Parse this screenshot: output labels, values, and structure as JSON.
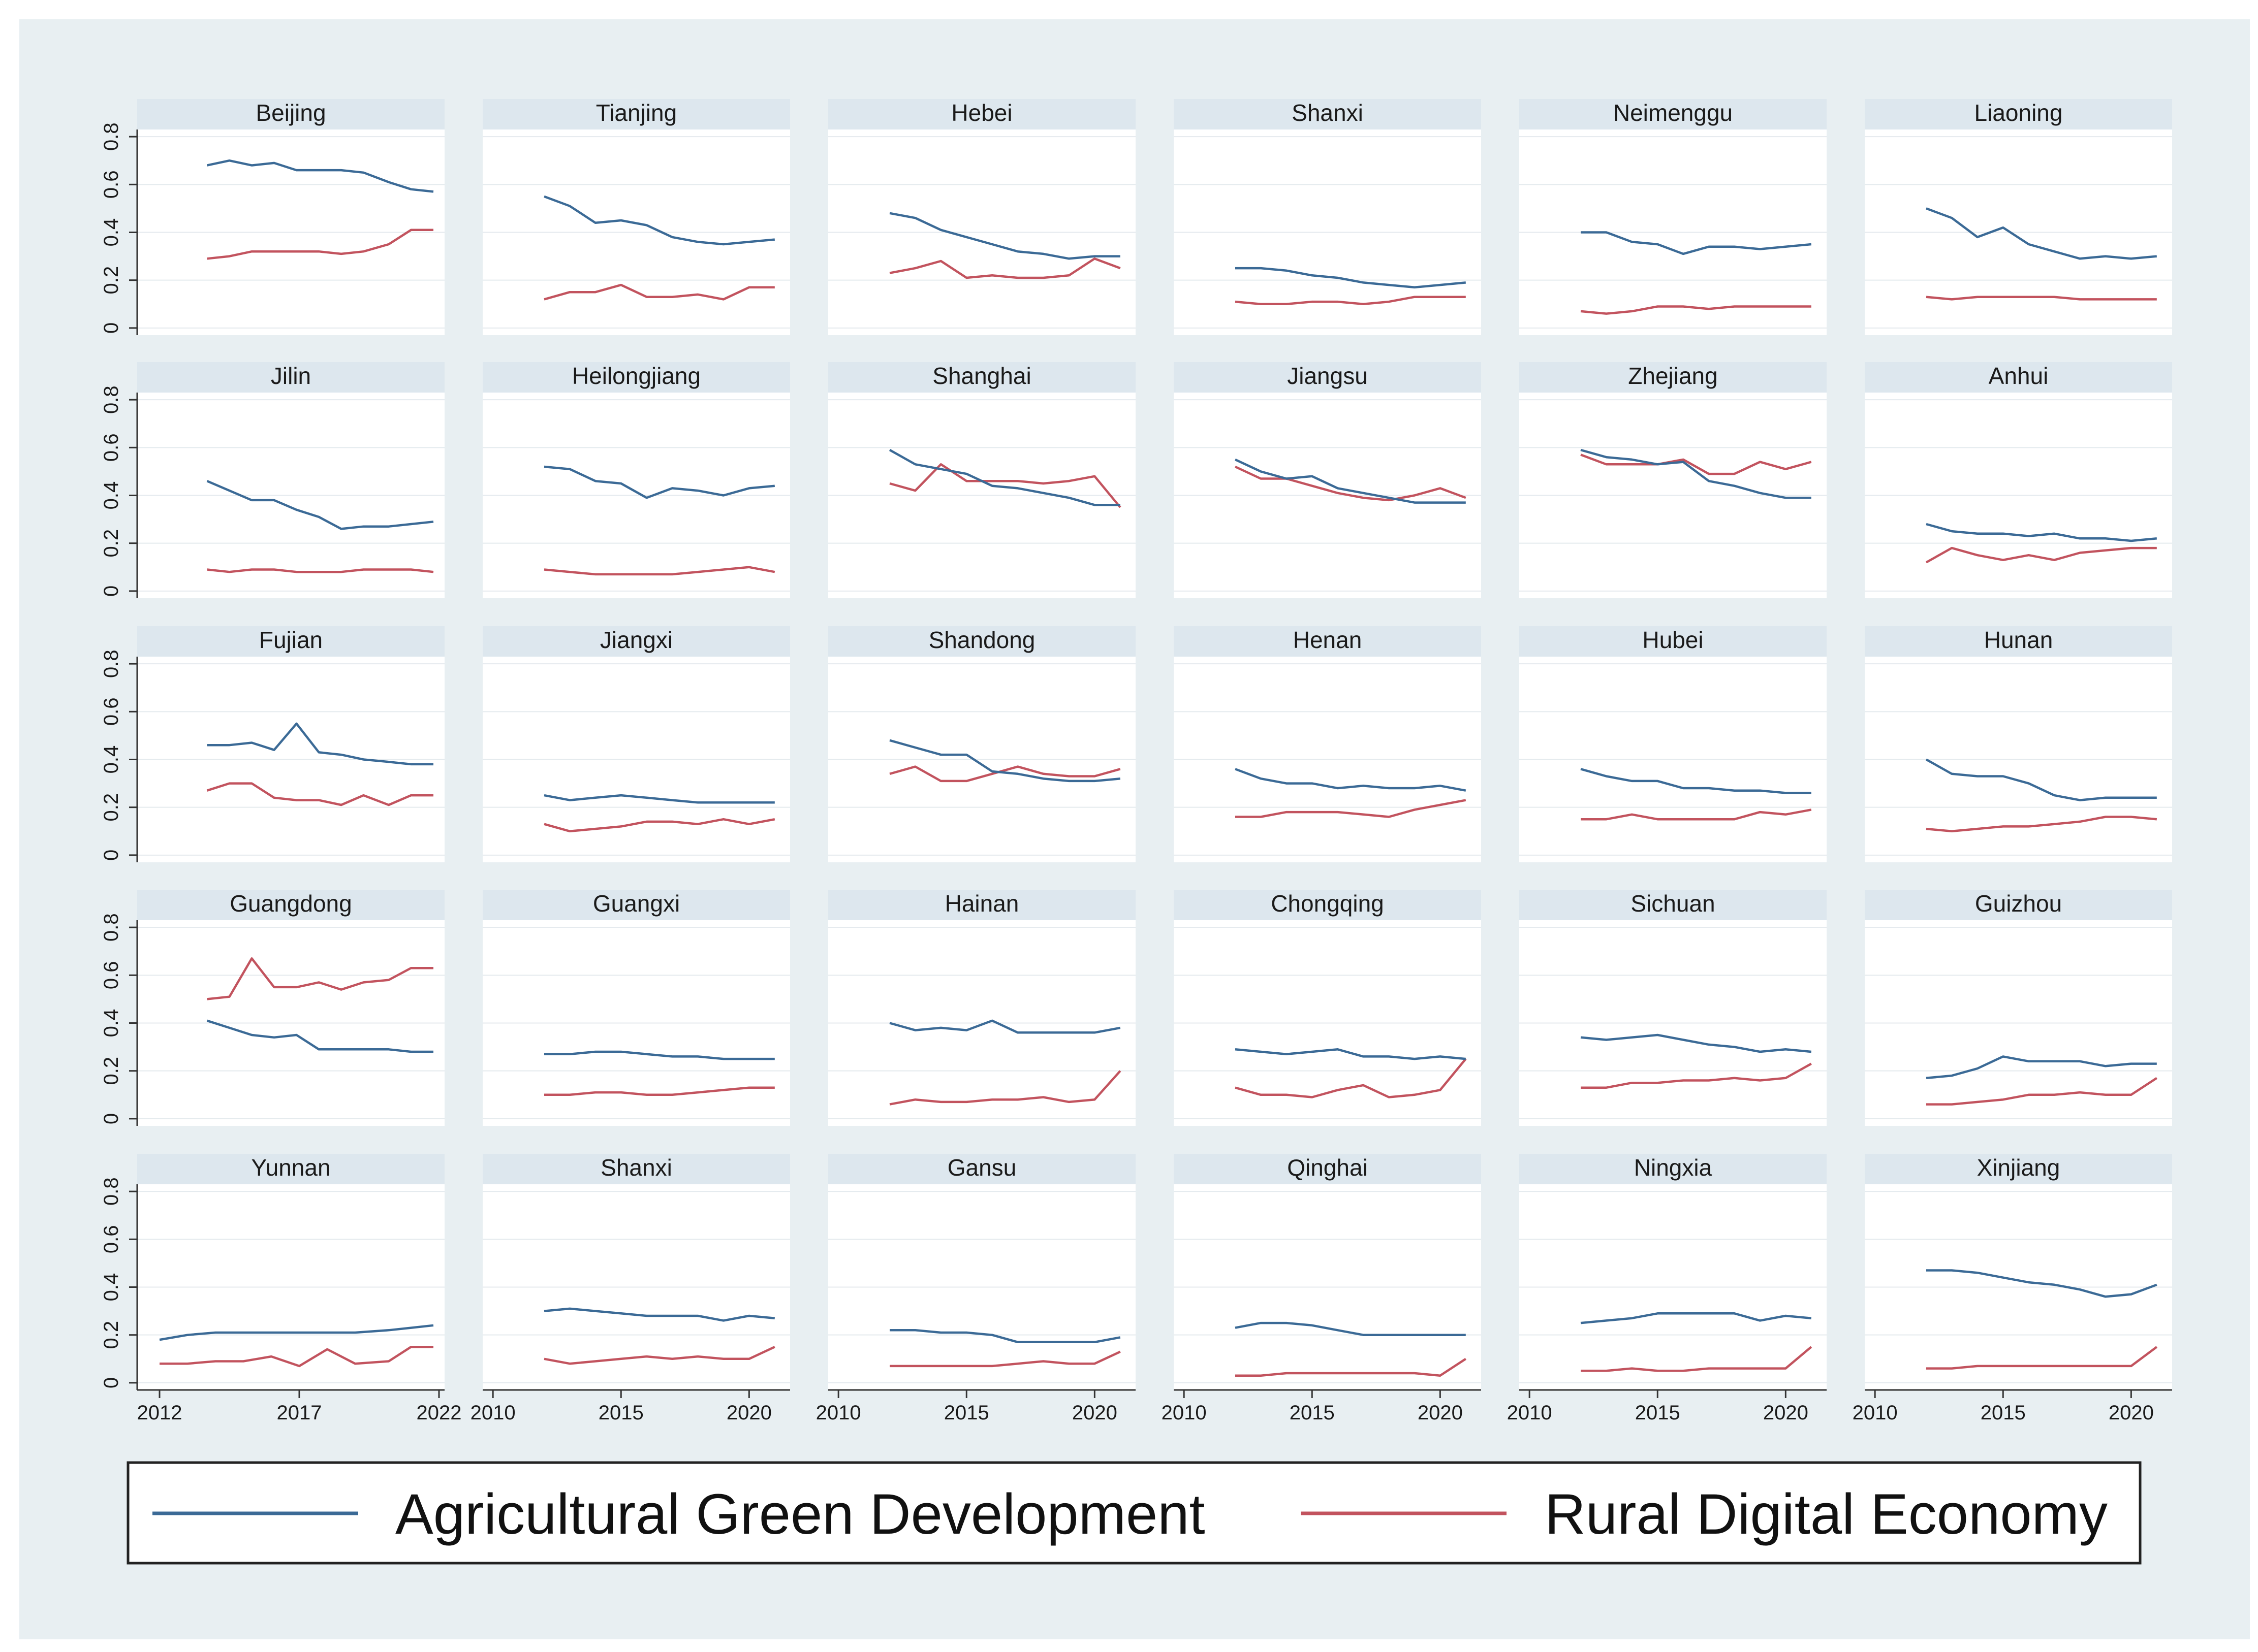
{
  "colors": {
    "agri": "#3b6a96",
    "rural": "#c2535e",
    "outer_bg": "#e8eff2",
    "strip_bg": "#dde7ee",
    "grid": "#e4eaee",
    "axis": "#333333"
  },
  "chart_data": {
    "type": "line",
    "layout": "small-multiples 5x6",
    "y_ticks": [
      0,
      0.2,
      0.4,
      0.6,
      0.8
    ],
    "y_tick_labels": [
      "0",
      "0.2",
      "0.4",
      "0.6",
      "0.8"
    ],
    "ylim": [
      -0.03,
      0.83
    ],
    "x_tick_sets": [
      {
        "ticks": [
          2012,
          2017,
          2022
        ],
        "labels": [
          "2012",
          "2017",
          "2022"
        ],
        "xlim": [
          2011.2,
          2022.2
        ]
      },
      {
        "ticks": [
          2010,
          2015,
          2020
        ],
        "labels": [
          "2010",
          "2015",
          "2020"
        ],
        "xlim": [
          2009.6,
          2021.6
        ]
      }
    ],
    "legend": {
      "position": "bottom",
      "entries": [
        "Agricultural Green Development",
        "Rural Digital Economy"
      ]
    },
    "panels": [
      {
        "name": "Beijing",
        "x": [
          2013.7,
          2014.5,
          2015.3,
          2016.1,
          2016.9,
          2017.7,
          2018.5,
          2019.3,
          2020.2,
          2021.0,
          2021.8
        ],
        "agri": [
          0.68,
          0.7,
          0.68,
          0.69,
          0.66,
          0.66,
          0.66,
          0.65,
          0.61,
          0.58,
          0.57
        ],
        "rural": [
          0.29,
          0.3,
          0.32,
          0.32,
          0.32,
          0.32,
          0.31,
          0.32,
          0.35,
          0.41,
          0.41
        ]
      },
      {
        "name": "Tianjing",
        "x": [
          2012,
          2013,
          2014,
          2015,
          2016,
          2017,
          2018,
          2019,
          2020,
          2021
        ],
        "agri": [
          0.55,
          0.51,
          0.44,
          0.45,
          0.43,
          0.38,
          0.36,
          0.35,
          0.36,
          0.37
        ],
        "rural": [
          0.12,
          0.15,
          0.15,
          0.18,
          0.13,
          0.13,
          0.14,
          0.12,
          0.17,
          0.17
        ]
      },
      {
        "name": "Hebei",
        "x": [
          2012,
          2013,
          2014,
          2015,
          2016,
          2017,
          2018,
          2019,
          2020,
          2021
        ],
        "agri": [
          0.48,
          0.46,
          0.41,
          0.38,
          0.35,
          0.32,
          0.31,
          0.29,
          0.3,
          0.3
        ],
        "rural": [
          0.23,
          0.25,
          0.28,
          0.21,
          0.22,
          0.21,
          0.21,
          0.22,
          0.29,
          0.25
        ]
      },
      {
        "name": "Shanxi",
        "x": [
          2012,
          2013,
          2014,
          2015,
          2016,
          2017,
          2018,
          2019,
          2020,
          2021
        ],
        "agri": [
          0.25,
          0.25,
          0.24,
          0.22,
          0.21,
          0.19,
          0.18,
          0.17,
          0.18,
          0.19
        ],
        "rural": [
          0.11,
          0.1,
          0.1,
          0.11,
          0.11,
          0.1,
          0.11,
          0.13,
          0.13,
          0.13
        ]
      },
      {
        "name": "Neimenggu",
        "x": [
          2012,
          2013,
          2014,
          2015,
          2016,
          2017,
          2018,
          2019,
          2020,
          2021
        ],
        "agri": [
          0.4,
          0.4,
          0.36,
          0.35,
          0.31,
          0.34,
          0.34,
          0.33,
          0.34,
          0.35
        ],
        "rural": [
          0.07,
          0.06,
          0.07,
          0.09,
          0.09,
          0.08,
          0.09,
          0.09,
          0.09,
          0.09
        ]
      },
      {
        "name": "Liaoning",
        "x": [
          2012,
          2013,
          2014,
          2015,
          2016,
          2017,
          2018,
          2019,
          2020,
          2021
        ],
        "agri": [
          0.5,
          0.46,
          0.38,
          0.42,
          0.35,
          0.32,
          0.29,
          0.3,
          0.29,
          0.3
        ],
        "rural": [
          0.13,
          0.12,
          0.13,
          0.13,
          0.13,
          0.13,
          0.12,
          0.12,
          0.12,
          0.12
        ]
      },
      {
        "name": "Jilin",
        "x": [
          2013.7,
          2014.5,
          2015.3,
          2016.1,
          2016.9,
          2017.7,
          2018.5,
          2019.3,
          2020.2,
          2021.0,
          2021.8
        ],
        "agri": [
          0.46,
          0.42,
          0.38,
          0.38,
          0.34,
          0.31,
          0.26,
          0.27,
          0.27,
          0.28,
          0.29
        ],
        "rural": [
          0.09,
          0.08,
          0.09,
          0.09,
          0.08,
          0.08,
          0.08,
          0.09,
          0.09,
          0.09,
          0.08
        ]
      },
      {
        "name": "Heilongjiang",
        "x": [
          2012,
          2013,
          2014,
          2015,
          2016,
          2017,
          2018,
          2019,
          2020,
          2021
        ],
        "agri": [
          0.52,
          0.51,
          0.46,
          0.45,
          0.39,
          0.43,
          0.42,
          0.4,
          0.43,
          0.44
        ],
        "rural": [
          0.09,
          0.08,
          0.07,
          0.07,
          0.07,
          0.07,
          0.08,
          0.09,
          0.1,
          0.08
        ]
      },
      {
        "name": "Shanghai",
        "x": [
          2012,
          2013,
          2014,
          2015,
          2016,
          2017,
          2018,
          2019,
          2020,
          2021
        ],
        "agri": [
          0.59,
          0.53,
          0.51,
          0.49,
          0.44,
          0.43,
          0.41,
          0.39,
          0.36,
          0.36
        ],
        "rural": [
          0.45,
          0.42,
          0.53,
          0.46,
          0.46,
          0.46,
          0.45,
          0.46,
          0.48,
          0.35
        ]
      },
      {
        "name": "Jiangsu",
        "x": [
          2012,
          2013,
          2014,
          2015,
          2016,
          2017,
          2018,
          2019,
          2020,
          2021
        ],
        "agri": [
          0.55,
          0.5,
          0.47,
          0.48,
          0.43,
          0.41,
          0.39,
          0.37,
          0.37,
          0.37
        ],
        "rural": [
          0.52,
          0.47,
          0.47,
          0.44,
          0.41,
          0.39,
          0.38,
          0.4,
          0.43,
          0.39
        ]
      },
      {
        "name": "Zhejiang",
        "x": [
          2012,
          2013,
          2014,
          2015,
          2016,
          2017,
          2018,
          2019,
          2020,
          2021
        ],
        "agri": [
          0.59,
          0.56,
          0.55,
          0.53,
          0.54,
          0.46,
          0.44,
          0.41,
          0.39,
          0.39
        ],
        "rural": [
          0.57,
          0.53,
          0.53,
          0.53,
          0.55,
          0.49,
          0.49,
          0.54,
          0.51,
          0.54
        ]
      },
      {
        "name": "Anhui",
        "x": [
          2012,
          2013,
          2014,
          2015,
          2016,
          2017,
          2018,
          2019,
          2020,
          2021
        ],
        "agri": [
          0.28,
          0.25,
          0.24,
          0.24,
          0.23,
          0.24,
          0.22,
          0.22,
          0.21,
          0.22
        ],
        "rural": [
          0.12,
          0.18,
          0.15,
          0.13,
          0.15,
          0.13,
          0.16,
          0.17,
          0.18,
          0.18
        ]
      },
      {
        "name": "Fujian",
        "x": [
          2013.7,
          2014.5,
          2015.3,
          2016.1,
          2016.9,
          2017.7,
          2018.5,
          2019.3,
          2020.2,
          2021.0,
          2021.8
        ],
        "agri": [
          0.46,
          0.46,
          0.47,
          0.44,
          0.55,
          0.43,
          0.42,
          0.4,
          0.39,
          0.38,
          0.38
        ],
        "rural": [
          0.27,
          0.3,
          0.3,
          0.24,
          0.23,
          0.23,
          0.21,
          0.25,
          0.21,
          0.25,
          0.25
        ]
      },
      {
        "name": "Jiangxi",
        "x": [
          2012,
          2013,
          2014,
          2015,
          2016,
          2017,
          2018,
          2019,
          2020,
          2021
        ],
        "agri": [
          0.25,
          0.23,
          0.24,
          0.25,
          0.24,
          0.23,
          0.22,
          0.22,
          0.22,
          0.22
        ],
        "rural": [
          0.13,
          0.1,
          0.11,
          0.12,
          0.14,
          0.14,
          0.13,
          0.15,
          0.13,
          0.15
        ]
      },
      {
        "name": "Shandong",
        "x": [
          2012,
          2013,
          2014,
          2015,
          2016,
          2017,
          2018,
          2019,
          2020,
          2021
        ],
        "agri": [
          0.48,
          0.45,
          0.42,
          0.42,
          0.35,
          0.34,
          0.32,
          0.31,
          0.31,
          0.32
        ],
        "rural": [
          0.34,
          0.37,
          0.31,
          0.31,
          0.34,
          0.37,
          0.34,
          0.33,
          0.33,
          0.36
        ]
      },
      {
        "name": "Henan",
        "x": [
          2012,
          2013,
          2014,
          2015,
          2016,
          2017,
          2018,
          2019,
          2020,
          2021
        ],
        "agri": [
          0.36,
          0.32,
          0.3,
          0.3,
          0.28,
          0.29,
          0.28,
          0.28,
          0.29,
          0.27
        ],
        "rural": [
          0.16,
          0.16,
          0.18,
          0.18,
          0.18,
          0.17,
          0.16,
          0.19,
          0.21,
          0.23
        ]
      },
      {
        "name": "Hubei",
        "x": [
          2012,
          2013,
          2014,
          2015,
          2016,
          2017,
          2018,
          2019,
          2020,
          2021
        ],
        "agri": [
          0.36,
          0.33,
          0.31,
          0.31,
          0.28,
          0.28,
          0.27,
          0.27,
          0.26,
          0.26
        ],
        "rural": [
          0.15,
          0.15,
          0.17,
          0.15,
          0.15,
          0.15,
          0.15,
          0.18,
          0.17,
          0.19
        ]
      },
      {
        "name": "Hunan",
        "x": [
          2012,
          2013,
          2014,
          2015,
          2016,
          2017,
          2018,
          2019,
          2020,
          2021
        ],
        "agri": [
          0.4,
          0.34,
          0.33,
          0.33,
          0.3,
          0.25,
          0.23,
          0.24,
          0.24,
          0.24
        ],
        "rural": [
          0.11,
          0.1,
          0.11,
          0.12,
          0.12,
          0.13,
          0.14,
          0.16,
          0.16,
          0.15
        ]
      },
      {
        "name": "Guangdong",
        "x": [
          2013.7,
          2014.5,
          2015.3,
          2016.1,
          2016.9,
          2017.7,
          2018.5,
          2019.3,
          2020.2,
          2021.0,
          2021.8
        ],
        "agri": [
          0.41,
          0.38,
          0.35,
          0.34,
          0.35,
          0.29,
          0.29,
          0.29,
          0.29,
          0.28,
          0.28
        ],
        "rural": [
          0.5,
          0.51,
          0.67,
          0.55,
          0.55,
          0.57,
          0.54,
          0.57,
          0.58,
          0.63,
          0.63
        ]
      },
      {
        "name": "Guangxi",
        "x": [
          2012,
          2013,
          2014,
          2015,
          2016,
          2017,
          2018,
          2019,
          2020,
          2021
        ],
        "agri": [
          0.27,
          0.27,
          0.28,
          0.28,
          0.27,
          0.26,
          0.26,
          0.25,
          0.25,
          0.25
        ],
        "rural": [
          0.1,
          0.1,
          0.11,
          0.11,
          0.1,
          0.1,
          0.11,
          0.12,
          0.13,
          0.13
        ]
      },
      {
        "name": "Hainan",
        "x": [
          2012,
          2013,
          2014,
          2015,
          2016,
          2017,
          2018,
          2019,
          2020,
          2021
        ],
        "agri": [
          0.4,
          0.37,
          0.38,
          0.37,
          0.41,
          0.36,
          0.36,
          0.36,
          0.36,
          0.38
        ],
        "rural": [
          0.06,
          0.08,
          0.07,
          0.07,
          0.08,
          0.08,
          0.09,
          0.07,
          0.08,
          0.2
        ]
      },
      {
        "name": "Chongqing",
        "x": [
          2012,
          2013,
          2014,
          2015,
          2016,
          2017,
          2018,
          2019,
          2020,
          2021
        ],
        "agri": [
          0.29,
          0.28,
          0.27,
          0.28,
          0.29,
          0.26,
          0.26,
          0.25,
          0.26,
          0.25
        ],
        "rural": [
          0.13,
          0.1,
          0.1,
          0.09,
          0.12,
          0.14,
          0.09,
          0.1,
          0.12,
          0.25
        ]
      },
      {
        "name": "Sichuan",
        "x": [
          2012,
          2013,
          2014,
          2015,
          2016,
          2017,
          2018,
          2019,
          2020,
          2021
        ],
        "agri": [
          0.34,
          0.33,
          0.34,
          0.35,
          0.33,
          0.31,
          0.3,
          0.28,
          0.29,
          0.28
        ],
        "rural": [
          0.13,
          0.13,
          0.15,
          0.15,
          0.16,
          0.16,
          0.17,
          0.16,
          0.17,
          0.23
        ]
      },
      {
        "name": "Guizhou",
        "x": [
          2012,
          2013,
          2014,
          2015,
          2016,
          2017,
          2018,
          2019,
          2020,
          2021
        ],
        "agri": [
          0.17,
          0.18,
          0.21,
          0.26,
          0.24,
          0.24,
          0.24,
          0.22,
          0.23,
          0.23
        ],
        "rural": [
          0.06,
          0.06,
          0.07,
          0.08,
          0.1,
          0.1,
          0.11,
          0.1,
          0.1,
          0.17
        ]
      },
      {
        "name": "Yunnan",
        "x": [
          2012.0,
          2013.0,
          2014.0,
          2015.0,
          2016.0,
          2017.0,
          2018.0,
          2019.0,
          2020.2,
          2021.0,
          2021.8
        ],
        "agri": [
          0.18,
          0.2,
          0.21,
          0.21,
          0.21,
          0.21,
          0.21,
          0.21,
          0.22,
          0.23,
          0.24
        ],
        "rural": [
          0.08,
          0.08,
          0.09,
          0.09,
          0.11,
          0.07,
          0.14,
          0.08,
          0.09,
          0.15,
          0.15
        ]
      },
      {
        "name": "Shanxi",
        "x": [
          2012,
          2013,
          2014,
          2015,
          2016,
          2017,
          2018,
          2019,
          2020,
          2021
        ],
        "agri": [
          0.3,
          0.31,
          0.3,
          0.29,
          0.28,
          0.28,
          0.28,
          0.26,
          0.28,
          0.27
        ],
        "rural": [
          0.1,
          0.08,
          0.09,
          0.1,
          0.11,
          0.1,
          0.11,
          0.1,
          0.1,
          0.15
        ]
      },
      {
        "name": "Gansu",
        "x": [
          2012,
          2013,
          2014,
          2015,
          2016,
          2017,
          2018,
          2019,
          2020,
          2021
        ],
        "agri": [
          0.22,
          0.22,
          0.21,
          0.21,
          0.2,
          0.17,
          0.17,
          0.17,
          0.17,
          0.19
        ],
        "rural": [
          0.07,
          0.07,
          0.07,
          0.07,
          0.07,
          0.08,
          0.09,
          0.08,
          0.08,
          0.13
        ]
      },
      {
        "name": "Qinghai",
        "x": [
          2012,
          2013,
          2014,
          2015,
          2016,
          2017,
          2018,
          2019,
          2020,
          2021
        ],
        "agri": [
          0.23,
          0.25,
          0.25,
          0.24,
          0.22,
          0.2,
          0.2,
          0.2,
          0.2,
          0.2
        ],
        "rural": [
          0.03,
          0.03,
          0.04,
          0.04,
          0.04,
          0.04,
          0.04,
          0.04,
          0.03,
          0.1
        ]
      },
      {
        "name": "Ningxia",
        "x": [
          2012,
          2013,
          2014,
          2015,
          2016,
          2017,
          2018,
          2019,
          2020,
          2021
        ],
        "agri": [
          0.25,
          0.26,
          0.27,
          0.29,
          0.29,
          0.29,
          0.29,
          0.26,
          0.28,
          0.27
        ],
        "rural": [
          0.05,
          0.05,
          0.06,
          0.05,
          0.05,
          0.06,
          0.06,
          0.06,
          0.06,
          0.15
        ]
      },
      {
        "name": "Xinjiang",
        "x": [
          2012,
          2013,
          2014,
          2015,
          2016,
          2017,
          2018,
          2019,
          2020,
          2021
        ],
        "agri": [
          0.47,
          0.47,
          0.46,
          0.44,
          0.42,
          0.41,
          0.39,
          0.36,
          0.37,
          0.41
        ],
        "rural": [
          0.06,
          0.06,
          0.07,
          0.07,
          0.07,
          0.07,
          0.07,
          0.07,
          0.07,
          0.15
        ]
      }
    ]
  }
}
